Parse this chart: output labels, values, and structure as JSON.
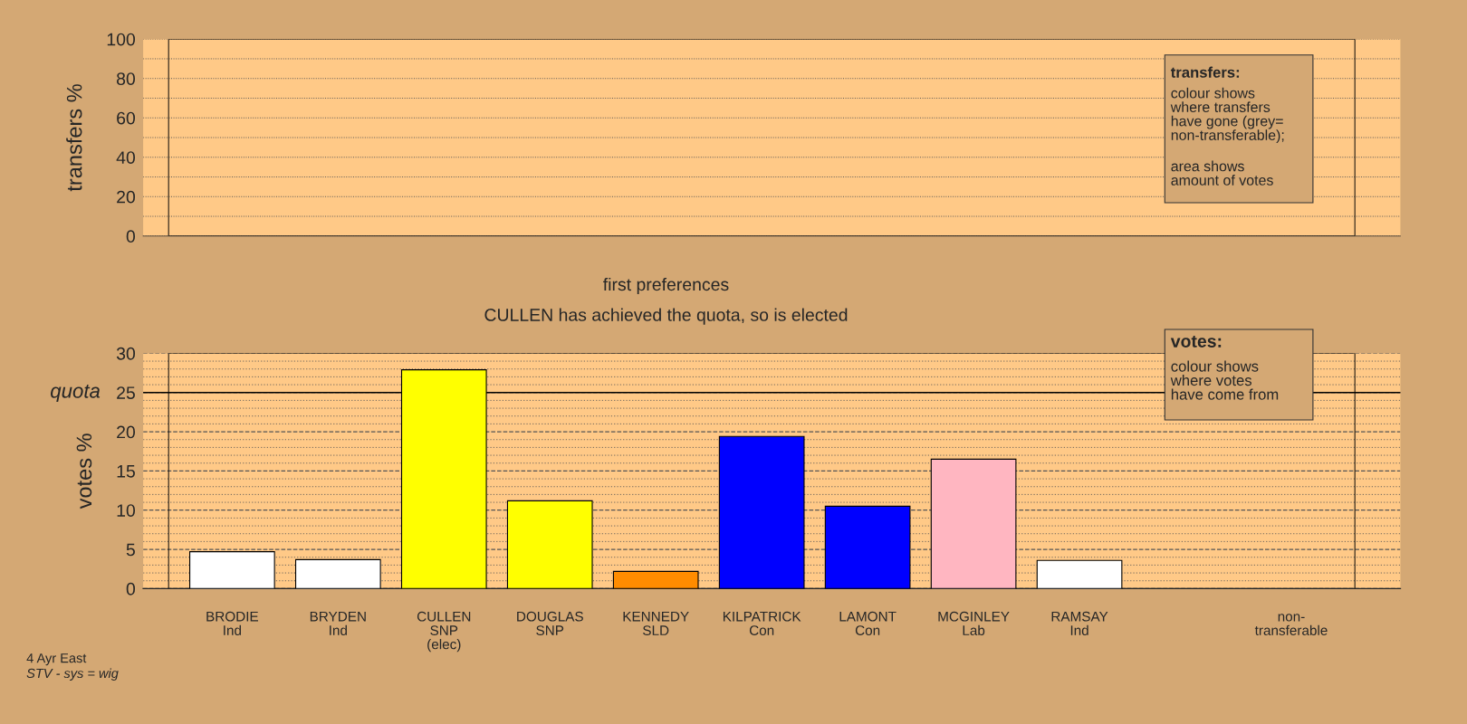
{
  "chart_data": [
    {
      "type": "bar",
      "ylabel": "transfers %",
      "categories": [
        null,
        null,
        null,
        null,
        null,
        null,
        null,
        null,
        null,
        null,
        null
      ],
      "values": [
        null,
        null,
        null,
        null,
        null,
        null,
        null,
        null,
        null,
        null,
        null
      ],
      "ylim": [
        0,
        100
      ],
      "yticks": [
        0,
        20,
        40,
        60,
        80,
        100
      ],
      "grid": "y",
      "tick_labels": "y",
      "annotations": [
        "transfers:",
        "colour shows\nwhere transfers\nhave gone (grey=\nnon-transferable);",
        "area shows\namount of votes"
      ]
    },
    {
      "type": "bar",
      "title": "first preferences",
      "subtitle": "CULLEN has achieved the quota, so is elected",
      "ylabel": "votes %",
      "categories": [
        "BRODIE\nInd",
        "BRYDEN\nInd",
        "CULLEN\nSNP\n(elec)",
        "DOUGLAS\nSNP",
        "KENNEDY\nSLD",
        "KILPATRICK\nCon",
        "LAMONT\nCon",
        "MCGINLEY\nLab",
        "RAMSAY\nInd",
        null,
        "non-\ntransferable"
      ],
      "values": [
        4.7,
        3.7,
        27.9,
        11.2,
        2.2,
        19.4,
        10.5,
        16.5,
        3.6,
        null,
        null
      ],
      "colors": [
        "#ffffff",
        "#ffffff",
        "#ffff00",
        "#ffff00",
        "#ff8c00",
        "#0000ff",
        "#0000ff",
        "#ffb6c1",
        "#ffffff",
        "#ffffff",
        "#ffffff"
      ],
      "ylim": [
        0,
        30
      ],
      "yticks": [
        0,
        5,
        10,
        15,
        20,
        25,
        30
      ],
      "grid": "y",
      "ref_lines": [
        {
          "axis": "y",
          "value": 25,
          "label": "quota",
          "color": "#000000",
          "line_style": "solid"
        }
      ],
      "annotations": [
        "votes:",
        "colour shows\nwhere votes\nhave come from",
        "4 Ayr East",
        "STV - sys = wig"
      ]
    }
  ]
}
